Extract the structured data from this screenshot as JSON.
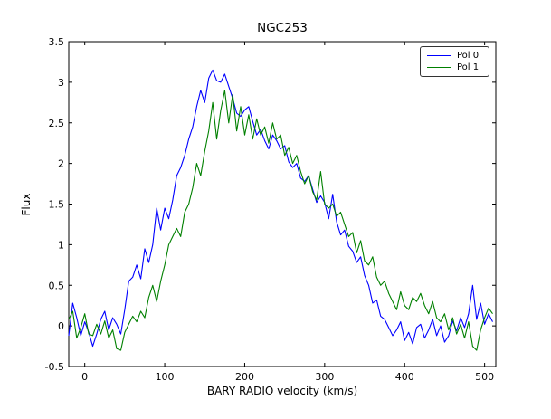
{
  "chart_data": {
    "type": "line",
    "title": "NGC253",
    "xlabel": "BARY RADIO velocity (km/s)",
    "ylabel": "Flux",
    "xlim": [
      -20,
      514
    ],
    "ylim": [
      -0.5,
      3.5
    ],
    "xtick_values": [
      0,
      100,
      200,
      300,
      400,
      500
    ],
    "xtick_labels": [
      "0",
      "100",
      "200",
      "300",
      "400",
      "500"
    ],
    "ytick_values": [
      -0.5,
      0,
      0.5,
      1,
      1.5,
      2,
      2.5,
      3,
      3.5
    ],
    "ytick_labels": [
      "-0.5",
      "0",
      "0.5",
      "1",
      "1.5",
      "2",
      "2.5",
      "3",
      "3.5"
    ],
    "grid": false,
    "legend_position": "upper right",
    "x": [
      -20,
      -15,
      -10,
      -5,
      0,
      5,
      10,
      15,
      20,
      25,
      30,
      35,
      40,
      45,
      50,
      55,
      60,
      65,
      70,
      75,
      80,
      85,
      90,
      95,
      100,
      105,
      110,
      115,
      120,
      125,
      130,
      135,
      140,
      145,
      150,
      155,
      160,
      165,
      170,
      175,
      180,
      185,
      190,
      195,
      200,
      205,
      210,
      215,
      220,
      225,
      230,
      235,
      240,
      245,
      250,
      255,
      260,
      265,
      270,
      275,
      280,
      285,
      290,
      295,
      300,
      305,
      310,
      315,
      320,
      325,
      330,
      335,
      340,
      345,
      350,
      355,
      360,
      365,
      370,
      375,
      380,
      385,
      390,
      395,
      400,
      405,
      410,
      415,
      420,
      425,
      430,
      435,
      440,
      445,
      450,
      455,
      460,
      465,
      470,
      475,
      480,
      485,
      490,
      495,
      500,
      505,
      510
    ],
    "series": [
      {
        "name": "Pol 0",
        "color": "#0000ff",
        "values": [
          -0.12,
          0.28,
          0.1,
          -0.12,
          0.05,
          -0.08,
          -0.25,
          -0.1,
          0.08,
          0.18,
          -0.05,
          0.1,
          0.02,
          -0.1,
          0.2,
          0.55,
          0.6,
          0.75,
          0.58,
          0.95,
          0.78,
          1.0,
          1.45,
          1.18,
          1.45,
          1.32,
          1.55,
          1.85,
          1.95,
          2.1,
          2.3,
          2.45,
          2.7,
          2.9,
          2.75,
          3.05,
          3.15,
          3.02,
          3.0,
          3.1,
          2.95,
          2.8,
          2.62,
          2.58,
          2.66,
          2.7,
          2.52,
          2.35,
          2.42,
          2.28,
          2.18,
          2.35,
          2.28,
          2.18,
          2.22,
          2.02,
          1.95,
          2.0,
          1.82,
          1.78,
          1.85,
          1.68,
          1.52,
          1.6,
          1.52,
          1.32,
          1.62,
          1.28,
          1.12,
          1.18,
          0.98,
          0.92,
          0.78,
          0.85,
          0.62,
          0.5,
          0.28,
          0.32,
          0.12,
          0.08,
          -0.02,
          -0.12,
          -0.05,
          0.05,
          -0.18,
          -0.08,
          -0.22,
          -0.02,
          0.02,
          -0.15,
          -0.05,
          0.08,
          -0.12,
          0.0,
          -0.2,
          -0.12,
          0.06,
          -0.06,
          0.1,
          -0.02,
          0.15,
          0.5,
          0.08,
          0.28,
          0.02,
          0.15,
          0.05
        ]
      },
      {
        "name": "Pol 1",
        "color": "#008000",
        "values": [
          0.08,
          0.18,
          -0.15,
          -0.02,
          0.15,
          -0.1,
          -0.12,
          0.02,
          -0.1,
          0.06,
          -0.15,
          -0.05,
          -0.28,
          -0.3,
          -0.08,
          0.02,
          0.12,
          0.05,
          0.18,
          0.1,
          0.35,
          0.5,
          0.3,
          0.55,
          0.75,
          1.0,
          1.1,
          1.2,
          1.1,
          1.4,
          1.5,
          1.7,
          2.0,
          1.85,
          2.15,
          2.4,
          2.75,
          2.3,
          2.65,
          2.9,
          2.5,
          2.85,
          2.4,
          2.7,
          2.35,
          2.6,
          2.3,
          2.55,
          2.35,
          2.45,
          2.25,
          2.5,
          2.3,
          2.35,
          2.1,
          2.2,
          2.0,
          2.1,
          1.9,
          1.75,
          1.85,
          1.65,
          1.55,
          1.9,
          1.5,
          1.45,
          1.5,
          1.35,
          1.4,
          1.25,
          1.1,
          1.15,
          0.9,
          1.05,
          0.8,
          0.75,
          0.85,
          0.6,
          0.5,
          0.55,
          0.4,
          0.3,
          0.2,
          0.42,
          0.25,
          0.2,
          0.35,
          0.3,
          0.4,
          0.25,
          0.15,
          0.3,
          0.1,
          0.05,
          0.15,
          -0.05,
          0.1,
          -0.1,
          0.02,
          -0.15,
          0.05,
          -0.25,
          -0.3,
          -0.05,
          0.1,
          0.22,
          0.15
        ]
      }
    ]
  }
}
